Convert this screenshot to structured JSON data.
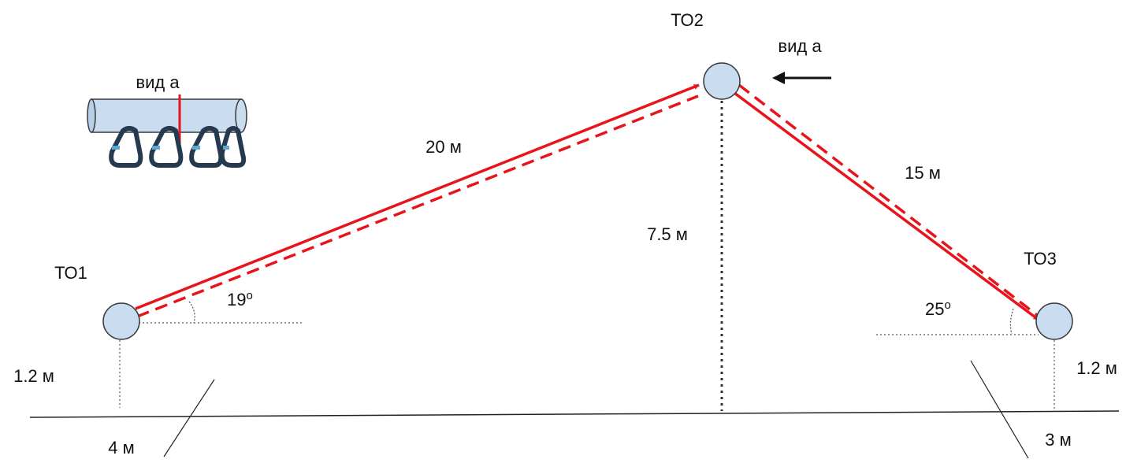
{
  "diagram": {
    "nodes": [
      {
        "id": "TO1",
        "label": "ТО1"
      },
      {
        "id": "TO2",
        "label": "ТО2"
      },
      {
        "id": "TO3",
        "label": "ТО3"
      }
    ],
    "edges": [
      {
        "from": "TO1",
        "to": "TO2",
        "length_label": "20 м",
        "angle": "19",
        "angle_unit": "o"
      },
      {
        "from": "TO2",
        "to": "TO3",
        "length_label": "15 м",
        "angle": "25",
        "angle_unit": "o"
      }
    ],
    "heights": {
      "TO1": "1.2 м",
      "TO2": "7.5 м",
      "TO3": "1.2 м"
    },
    "distances": {
      "left": "4 м",
      "right": "3 м"
    },
    "view": {
      "arrow_label": "вид а",
      "inset_label": "вид а",
      "inset_carabiners": 4
    },
    "colors": {
      "rope": "#e8141c",
      "node_fill": "#c9dcf0",
      "node_stroke": "#3a3a3a",
      "carabiner": "#263a4f",
      "carabiner_gate": "#5aa9d6"
    }
  }
}
